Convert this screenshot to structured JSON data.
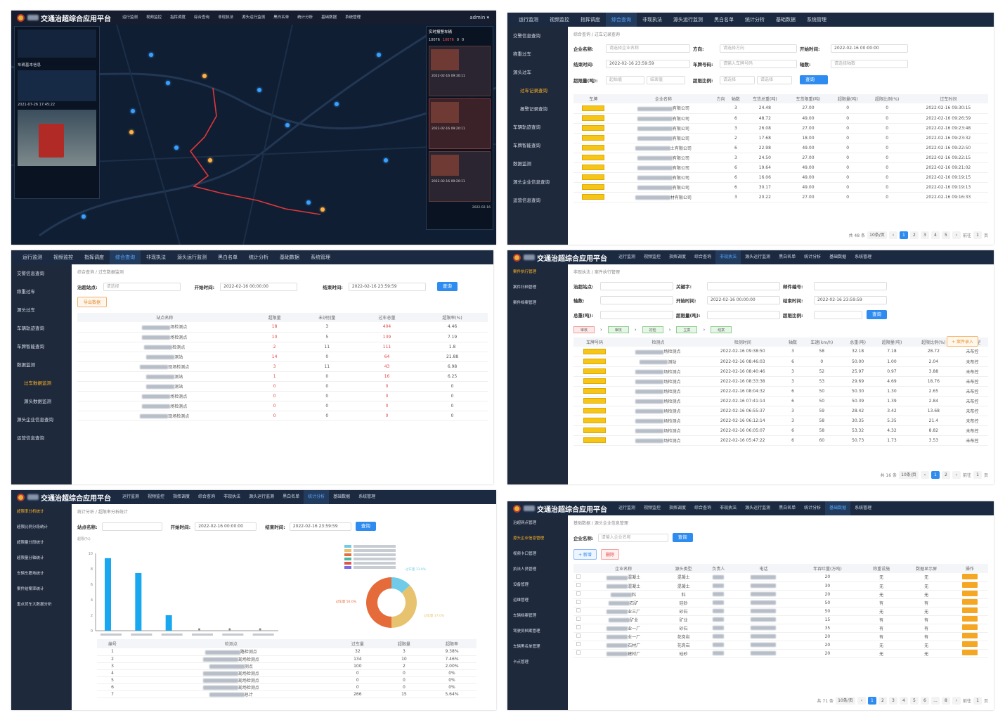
{
  "platform_title": "交通治超综合应用平台",
  "nav": [
    "运行监测",
    "视频监控",
    "指挥调度",
    "综合查询",
    "非现执法",
    "源头运行监测",
    "黑白名单",
    "统计分析",
    "基础数据",
    "系统管理"
  ],
  "panel1": {
    "user": "admin ▾",
    "left_panel_title": "",
    "right_alert_title": "实时报警车辆",
    "counts": [
      "10076",
      "10076",
      "0",
      "0"
    ],
    "alerts": [
      {
        "time": "2022-02-16 09:30:11"
      },
      {
        "time": "2022-02-16 09:20:11"
      },
      {
        "time": "2022-02-16 09:20:11"
      }
    ],
    "car_info_title": "车辆基本信息",
    "car_time": "2021-07-26 17:45:22",
    "bottom_time": "2022-02-16"
  },
  "panel2": {
    "breadcrumb": "综合查询 / 过车记录查询",
    "side": [
      "交警信息查询",
      "称重过车",
      "源头过车",
      "过车记录查询",
      "报警记录查询",
      "车辆轨迹查询",
      "车牌智能查询",
      "数据监测",
      "源头企业信息查询",
      "运营信息查询"
    ],
    "labels": {
      "company": "企业名称:",
      "direction": "方向:",
      "start": "开始时间:",
      "end": "结束时间:",
      "plate": "车牌号码:",
      "axle": "轴数:",
      "over_weight": "超限量(吨):",
      "over_ratio": "超限比例:"
    },
    "placeholders": {
      "company": "请选择企业名称",
      "direction": "请选择方向",
      "plate": "请输入车牌号码",
      "axle": "请选择轴数",
      "min": "起始值",
      "max": "结束值",
      "select": "请选择"
    },
    "start_time": "2022-02-16 00:00:00",
    "end_time": "2022-02-16 23:59:59",
    "query": "查询",
    "columns": [
      "车牌",
      "企业名称",
      "方向",
      "轴数",
      "车货总重(吨)",
      "车货限重(吨)",
      "超限量(吨)",
      "超限比例(%)",
      "过车时间"
    ],
    "rows": [
      [
        "有限公司",
        "",
        "3",
        "24.48",
        "27.00",
        "0",
        "0",
        "2022-02-16 09:30:15"
      ],
      [
        "有限公司",
        "",
        "6",
        "48.72",
        "49.00",
        "0",
        "0",
        "2022-02-16 09:26:59"
      ],
      [
        "有限公司",
        "",
        "3",
        "26.08",
        "27.00",
        "0",
        "0",
        "2022-02-16 09:23:48"
      ],
      [
        "有限公司",
        "",
        "2",
        "17.68",
        "18.00",
        "0",
        "0",
        "2022-02-16 09:23:32"
      ],
      [
        "土有限公司",
        "",
        "6",
        "22.98",
        "49.00",
        "0",
        "0",
        "2022-02-16 09:22:50"
      ],
      [
        "有限公司",
        "",
        "3",
        "24.50",
        "27.00",
        "0",
        "0",
        "2022-02-16 09:22:15"
      ],
      [
        "有限公司",
        "",
        "6",
        "19.64",
        "49.00",
        "0",
        "0",
        "2022-02-16 09:21:02"
      ],
      [
        "有限公司",
        "",
        "6",
        "16.06",
        "49.00",
        "0",
        "0",
        "2022-02-16 09:19:15"
      ],
      [
        "有限公司",
        "",
        "6",
        "30.17",
        "49.00",
        "0",
        "0",
        "2022-02-16 09:19:13"
      ],
      [
        "材有限公司",
        "",
        "3",
        "20.22",
        "27.00",
        "0",
        "0",
        "2022-02-16 09:16:33"
      ]
    ],
    "total": "共 48 条",
    "page_size": "10条/页",
    "pages": [
      "1",
      "2",
      "3",
      "4",
      "5"
    ],
    "goto": "前往",
    "goto_page": "1",
    "page_suffix": "页"
  },
  "panel3": {
    "breadcrumb": "综合查询 / 过车数据监测",
    "side": [
      "交警信息查询",
      "称重过车",
      "源头过车",
      "车辆轨迹查询",
      "车牌智能查询",
      "数据监测",
      "过车数据监测",
      "源头数据监测",
      "源头企业信息查询",
      "运营信息查询"
    ],
    "labels": {
      "site": "治超站点:",
      "start": "开始时间:",
      "end": "结束时间:"
    },
    "site_placeholder": "请选择",
    "start_time": "2022-02-16 00:00:00",
    "end_time": "2022-02-16 23:59:59",
    "query": "查询",
    "export": "导出数据",
    "columns": [
      "站点名称",
      "超限量",
      "未识别量",
      "过车总量",
      "超限率(%)"
    ],
    "rows": [
      [
        "场检测点",
        "18",
        "3",
        "404",
        "4.46"
      ],
      [
        "场检测点",
        "10",
        "5",
        "139",
        "7.19"
      ],
      [
        "检测点",
        "2",
        "11",
        "111",
        "1.8"
      ],
      [
        "测站",
        "14",
        "0",
        "64",
        "21.88"
      ],
      [
        "现场检测点",
        "3",
        "11",
        "43",
        "6.98"
      ],
      [
        "测站",
        "1",
        "0",
        "16",
        "6.25"
      ],
      [
        "测站",
        "0",
        "0",
        "0",
        "0"
      ],
      [
        "场检测点",
        "0",
        "0",
        "0",
        "0"
      ],
      [
        "场检测点",
        "0",
        "0",
        "0",
        "0"
      ],
      [
        "现场检测点",
        "0",
        "0",
        "0",
        "0"
      ]
    ]
  },
  "panel4": {
    "breadcrumb": "非现执法 / 案件执行管理",
    "side": [
      "案件执行管理",
      "案件归档管理",
      "案件档案管理"
    ],
    "labels": {
      "site": "治超站点:",
      "keyword": "关键字:",
      "case_no": "邮件编号:",
      "axle": "轴数:",
      "start": "开始时间:",
      "end": "结束时间:",
      "total": "总重(吨):",
      "over": "超限量(吨):",
      "ratio": "超限比例:"
    },
    "start_time": "2022-02-16 00:00:00",
    "end_time": "2022-02-16 23:59:59",
    "query": "查询",
    "flow": [
      "审核",
      "审核",
      "初检",
      "立案",
      "结案"
    ],
    "entry_btn": "+ 案件录入",
    "columns": [
      "车牌号码",
      "检测点",
      "检测时间",
      "轴数",
      "车速(km/h)",
      "总重(吨)",
      "超限量(吨)",
      "超限比例(%)",
      "布控类型"
    ],
    "rows": [
      [
        "场检测点",
        "2022-02-16 09:38:50",
        "3",
        "58",
        "32.18",
        "7.18",
        "28.72",
        "未布控"
      ],
      [
        "测站",
        "2022-02-16 08:46:03",
        "6",
        "0",
        "50.00",
        "1.00",
        "2.04",
        "未布控"
      ],
      [
        "场检测点",
        "2022-02-16 08:40:46",
        "3",
        "52",
        "25.97",
        "0.97",
        "3.88",
        "未布控"
      ],
      [
        "场检测点",
        "2022-02-16 08:33:38",
        "3",
        "53",
        "29.69",
        "4.69",
        "18.76",
        "未布控"
      ],
      [
        "场检测点",
        "2022-02-16 08:04:32",
        "6",
        "50",
        "50.30",
        "1.30",
        "2.65",
        "未布控"
      ],
      [
        "场检测点",
        "2022-02-16 07:41:14",
        "6",
        "50",
        "50.39",
        "1.39",
        "2.84",
        "未布控"
      ],
      [
        "场检测点",
        "2022-02-16 06:55:37",
        "3",
        "59",
        "28.42",
        "3.42",
        "13.68",
        "未布控"
      ],
      [
        "场检测点",
        "2022-02-16 06:12:14",
        "3",
        "58",
        "30.35",
        "5.35",
        "21.4",
        "未布控"
      ],
      [
        "场检测点",
        "2022-02-16 06:05:07",
        "6",
        "58",
        "53.32",
        "4.32",
        "8.82",
        "未布控"
      ],
      [
        "场检测点",
        "2022-02-16 05:47:22",
        "6",
        "60",
        "50.73",
        "1.73",
        "3.53",
        "未布控"
      ]
    ],
    "total": "共 16 条",
    "page_size": "10条/页",
    "pages": [
      "1",
      "2"
    ],
    "goto": "前往",
    "goto_page": "1",
    "page_suffix": "页"
  },
  "panel5": {
    "breadcrumb": "统计分析 / 超限率分析统计",
    "side": [
      "超限率分析统计",
      "超限比例分段统计",
      "超限量分段统计",
      "超限量分轴统计",
      "车辆车籍地统计",
      "案件结案率统计",
      "重点货车大数据分析"
    ],
    "labels": {
      "site": "站点名称:",
      "start": "开始时间:",
      "end": "结束时间:"
    },
    "start_time": "2022-02-16 00:00:00",
    "end_time": "2022-02-16 23:59:59",
    "query": "查询",
    "y_unit": "超限(%)",
    "columns": [
      "编号",
      "检测点",
      "过车量",
      "超限量",
      "超限率"
    ],
    "rows": [
      [
        "1",
        "路检测点",
        "32",
        "3",
        "9.38%"
      ],
      [
        "2",
        "现场检测点",
        "134",
        "10",
        "7.46%"
      ],
      [
        "3",
        "测点",
        "100",
        "2",
        "2.00%"
      ],
      [
        "4",
        "现场检测点",
        "0",
        "0",
        "0%"
      ],
      [
        "5",
        "现场检测点",
        "0",
        "0",
        "0%"
      ],
      [
        "6",
        "现场检测点",
        "0",
        "0",
        "0%"
      ],
      [
        "7",
        "总计",
        "266",
        "15",
        "5.64%"
      ]
    ]
  },
  "panel6": {
    "breadcrumb": "基础数据 / 源头企业信息管理",
    "side": [
      "治超网点管理",
      "源头企业信息管理",
      "视频卡口管理",
      "执法人员管理",
      "设备管理",
      "运维管理",
      "车辆档案管理",
      "驾驶员档案管理",
      "车辆黑名单管理",
      "卡点管理"
    ],
    "labels": {
      "company": "企业名称:"
    },
    "company_placeholder": "请输入企业名称",
    "query": "查询",
    "add": "+ 新增",
    "del": "删除",
    "columns": [
      "企业名称",
      "源头类型",
      "负责人",
      "电话",
      "年吞吐量(万吨)",
      "称重设施",
      "数据显示屏",
      "操作"
    ],
    "rows": [
      [
        "混凝土",
        "混凝土",
        "20",
        "无",
        "无"
      ],
      [
        "混凝土",
        "混凝土",
        "30",
        "无",
        "无"
      ],
      [
        "料",
        "料",
        "20",
        "无",
        "无"
      ],
      [
        "石矿",
        "硅砂",
        "50",
        "有",
        "有"
      ],
      [
        "业三厂",
        "砂石",
        "50",
        "无",
        "无"
      ],
      [
        "矿业",
        "矿业",
        "15",
        "有",
        "有"
      ],
      [
        "业一厂",
        "砂石",
        "35",
        "有",
        "有"
      ],
      [
        "业一厂",
        "花岗岩",
        "20",
        "有",
        "有"
      ],
      [
        "石材厂",
        "花岗岩",
        "20",
        "无",
        "无"
      ],
      [
        "建材厂",
        "硅砂",
        "20",
        "无",
        "无"
      ]
    ],
    "total": "共 71 条",
    "page_size": "10条/页",
    "pages": [
      "1",
      "2",
      "3",
      "4",
      "5",
      "6",
      "...",
      "8"
    ],
    "goto": "前往",
    "goto_page": "1",
    "page_suffix": "页"
  },
  "chart_data": [
    {
      "type": "bar",
      "categories": [
        "站点1",
        "站点2",
        "站点3",
        "站点4",
        "站点5",
        "站点6"
      ],
      "values": [
        9.38,
        7.46,
        2.0,
        0,
        0,
        0
      ],
      "ylabel": "超限(%)",
      "ylim": [
        0,
        10
      ]
    },
    {
      "type": "pie",
      "labels": [
        "过车量 13.0%",
        "过车量 37.0%",
        "过车量 50.0%"
      ],
      "values": [
        13,
        37,
        50
      ],
      "colors": [
        "#6fcbe8",
        "#e7c36f",
        "#e56b3a"
      ]
    }
  ]
}
